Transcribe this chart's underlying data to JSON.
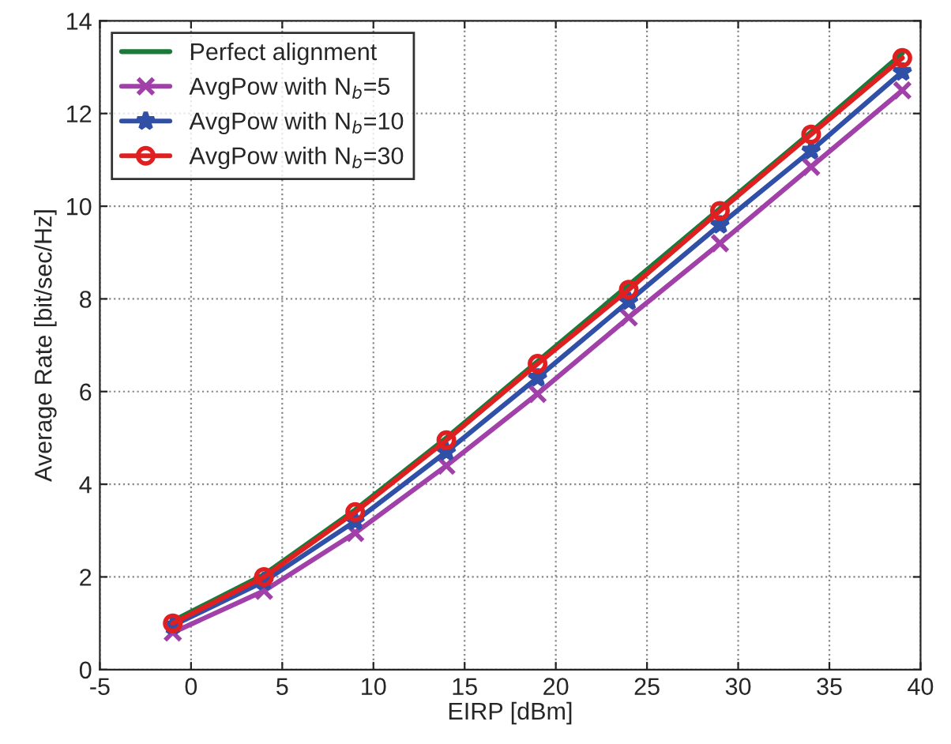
{
  "chart_data": {
    "type": "line",
    "xlabel": "EIRP [dBm]",
    "ylabel": "Average Rate [bit/sec/Hz]",
    "x": [
      -1,
      4,
      9,
      14,
      19,
      24,
      29,
      34,
      39
    ],
    "xlim": [
      -5,
      40
    ],
    "xticks": [
      -5,
      0,
      5,
      10,
      15,
      20,
      25,
      30,
      35,
      40
    ],
    "ylim": [
      0,
      14
    ],
    "yticks": [
      0,
      2,
      4,
      6,
      8,
      10,
      12,
      14
    ],
    "grid": true,
    "legend": "top left",
    "series": [
      {
        "name": "Perfect alignment",
        "color": "#1a7a3a",
        "marker": "none",
        "values": [
          1.05,
          2.05,
          3.45,
          5.0,
          6.65,
          8.3,
          9.95,
          11.6,
          13.3
        ]
      },
      {
        "name": "AvgPow with N$_{b}$=5",
        "color": "#a040a8",
        "marker": "cross",
        "values": [
          0.8,
          1.7,
          2.95,
          4.4,
          5.95,
          7.6,
          9.2,
          10.85,
          12.5
        ]
      },
      {
        "name": "AvgPow with N$_{b}$=10",
        "color": "#3050a8",
        "marker": "star",
        "values": [
          0.95,
          1.9,
          3.2,
          4.7,
          6.3,
          7.95,
          9.6,
          11.2,
          12.9
        ]
      },
      {
        "name": "AvgPow with N$_{b}$=30",
        "color": "#e02020",
        "marker": "circle",
        "values": [
          1.0,
          2.0,
          3.4,
          4.95,
          6.6,
          8.2,
          9.9,
          11.55,
          13.2
        ]
      }
    ]
  }
}
